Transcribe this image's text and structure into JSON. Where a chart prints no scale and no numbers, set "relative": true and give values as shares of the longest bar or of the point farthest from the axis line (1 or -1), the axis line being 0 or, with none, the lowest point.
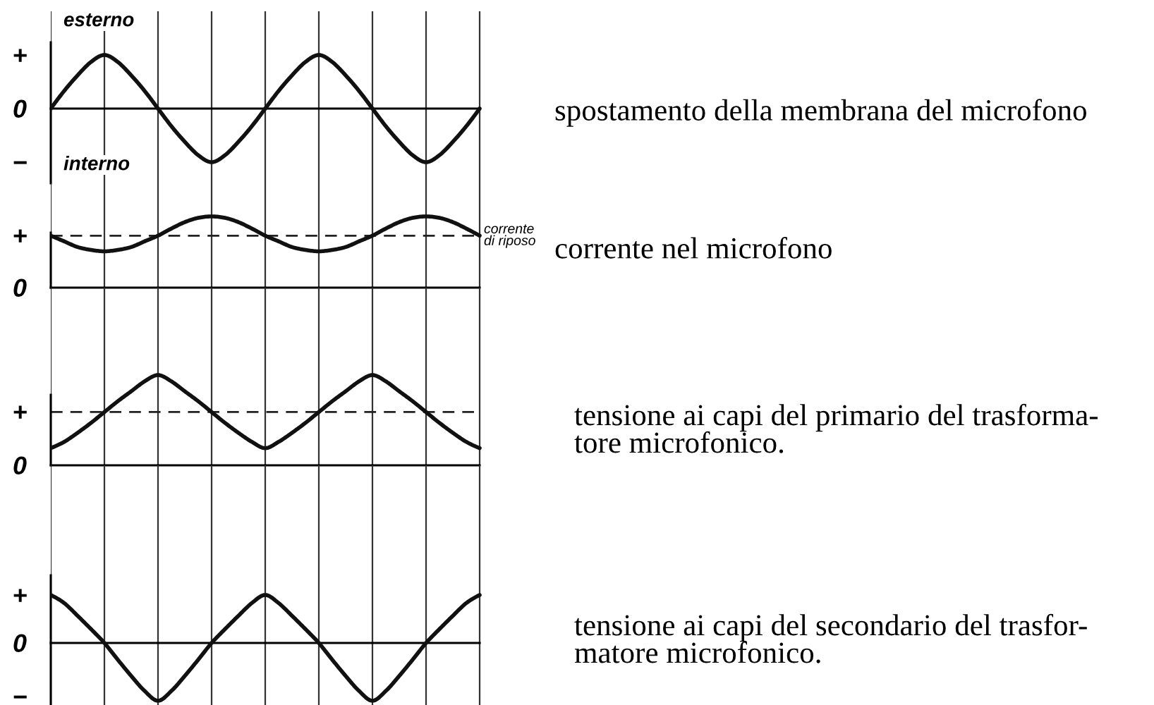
{
  "chart_data": [
    {
      "type": "line",
      "relative": true,
      "categories": [
        null,
        null,
        null,
        null,
        null,
        null,
        null,
        null,
        null,
        null,
        null,
        null,
        null,
        null,
        null,
        null,
        null,
        null,
        null,
        null,
        null,
        null,
        null,
        null,
        null,
        null,
        null,
        null,
        null,
        null,
        null,
        null,
        null
      ],
      "values": [
        0,
        0.33,
        0.62,
        0.87,
        1,
        0.87,
        0.62,
        0.33,
        0,
        -0.33,
        -0.62,
        -0.87,
        -1,
        -0.87,
        -0.62,
        -0.33,
        0,
        0.33,
        0.62,
        0.87,
        1,
        0.87,
        0.62,
        0.33,
        0,
        -0.33,
        -0.62,
        -0.87,
        -1,
        -0.87,
        -0.62,
        -0.33,
        0
      ],
      "color": "#111111",
      "grid": "x",
      "annotations": [
        "esterno",
        "+",
        "0",
        "−",
        "interno",
        "spostamento della membrana del microfono"
      ]
    },
    {
      "type": "line",
      "relative": true,
      "categories": [
        null,
        null,
        null,
        null,
        null,
        null,
        null,
        null,
        null,
        null,
        null,
        null,
        null,
        null,
        null,
        null,
        null,
        null,
        null,
        null,
        null,
        null,
        null,
        null,
        null,
        null,
        null,
        null,
        null,
        null,
        null,
        null,
        null
      ],
      "values": [
        0.73,
        0.65,
        0.57,
        0.53,
        0.51,
        0.53,
        0.57,
        0.65,
        0.73,
        0.83,
        0.92,
        0.98,
        1,
        0.98,
        0.92,
        0.83,
        0.73,
        0.65,
        0.57,
        0.53,
        0.51,
        0.53,
        0.57,
        0.65,
        0.73,
        0.83,
        0.92,
        0.98,
        1,
        0.98,
        0.92,
        0.83,
        0.73
      ],
      "color": "#111111",
      "grid": "x",
      "ref_lines": [
        {
          "axis": "y",
          "value": 0.73,
          "label": "corrente\ndi riposo",
          "line_style": "dashed"
        }
      ],
      "annotations": [
        "+",
        "0",
        "corrente nel microfono"
      ]
    },
    {
      "type": "line",
      "relative": true,
      "categories": [
        null,
        null,
        null,
        null,
        null,
        null,
        null,
        null,
        null,
        null,
        null,
        null,
        null,
        null,
        null,
        null,
        null,
        null,
        null,
        null,
        null,
        null,
        null,
        null,
        null,
        null,
        null,
        null,
        null,
        null,
        null,
        null,
        null
      ],
      "values": [
        0.19,
        0.26,
        0.36,
        0.47,
        0.59,
        0.71,
        0.82,
        0.93,
        1,
        0.93,
        0.82,
        0.71,
        0.59,
        0.47,
        0.36,
        0.26,
        0.19,
        0.26,
        0.36,
        0.47,
        0.59,
        0.71,
        0.82,
        0.93,
        1,
        0.93,
        0.82,
        0.71,
        0.59,
        0.47,
        0.36,
        0.26,
        0.19
      ],
      "color": "#111111",
      "grid": "x",
      "ref_lines": [
        {
          "axis": "y",
          "value": 0.59,
          "line_style": "dashed"
        }
      ],
      "annotations": [
        "+",
        "0",
        "tensione ai capi del primario del trasforma-\ntore microfonico."
      ]
    },
    {
      "type": "line",
      "relative": true,
      "categories": [
        null,
        null,
        null,
        null,
        null,
        null,
        null,
        null,
        null,
        null,
        null,
        null,
        null,
        null,
        null,
        null,
        null,
        null,
        null,
        null,
        null,
        null,
        null,
        null,
        null,
        null,
        null,
        null,
        null,
        null,
        null,
        null,
        null
      ],
      "values": [
        0.83,
        0.69,
        0.47,
        0.24,
        0,
        -0.29,
        -0.57,
        -0.83,
        -1,
        -0.83,
        -0.57,
        -0.29,
        0,
        0.24,
        0.47,
        0.69,
        0.83,
        0.69,
        0.47,
        0.24,
        0,
        -0.29,
        -0.57,
        -0.83,
        -1,
        -0.83,
        -0.57,
        -0.29,
        0,
        0.24,
        0.47,
        0.69,
        0.83
      ],
      "color": "#111111",
      "grid": "x",
      "annotations": [
        "+",
        "0",
        "−",
        "tensione ai capi del secondario del trasfor-\nmatore microfonico."
      ]
    }
  ]
}
